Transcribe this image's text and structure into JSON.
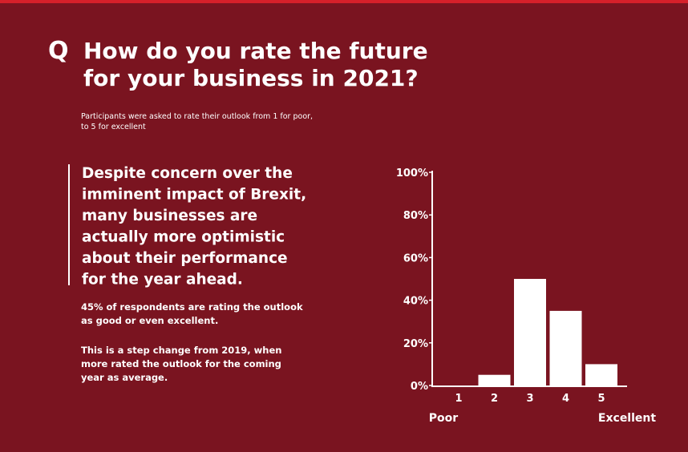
{
  "header": {
    "marker": "Q",
    "title": [
      "How do you rate the future",
      "for your business in 2021?"
    ],
    "subtitle": [
      "Participants were asked to rate their outlook from 1 for poor,",
      "to 5 for excellent"
    ]
  },
  "quote": [
    "Despite concern over the",
    "imminent impact of Brexit,",
    "many businesses are",
    "actually more optimistic",
    "about their performance",
    "for the year ahead."
  ],
  "paragraphs": [
    [
      "45% of respondents are rating the outlook",
      "as good or even excellent."
    ],
    [
      "This is a step change from 2019, when",
      "more rated the outlook for the coming",
      "year as average."
    ]
  ],
  "chart_data": {
    "type": "bar",
    "categories": [
      "1",
      "2",
      "3",
      "4",
      "5"
    ],
    "values": [
      0,
      5,
      50,
      35,
      10
    ],
    "color": "#ffffff",
    "ylim": [
      0,
      100
    ],
    "yticks": [
      {
        "value": 0,
        "label": "0%"
      },
      {
        "value": 20,
        "label": "20%"
      },
      {
        "value": 40,
        "label": "40%"
      },
      {
        "value": 60,
        "label": "60%"
      },
      {
        "value": 80,
        "label": "80%"
      },
      {
        "value": 100,
        "label": "100%"
      }
    ],
    "axis_end_labels": [
      "Poor",
      "Excellent"
    ]
  }
}
